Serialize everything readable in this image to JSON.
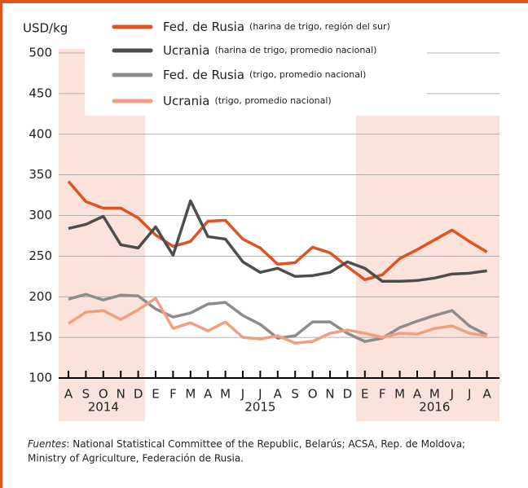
{
  "chart_data": {
    "type": "line",
    "y_label": "USD/kg",
    "categories": [
      "A",
      "S",
      "O",
      "N",
      "D",
      "E",
      "F",
      "M",
      "A",
      "M",
      "J",
      "J",
      "A",
      "S",
      "O",
      "N",
      "D",
      "E",
      "F",
      "M",
      "A",
      "M",
      "J",
      "J",
      "A"
    ],
    "year_labels": [
      "2014",
      "2015",
      "2016"
    ],
    "ylim": [
      100,
      500
    ],
    "yticks": [
      100,
      150,
      200,
      250,
      300,
      350,
      400,
      450,
      500
    ],
    "grid": true,
    "series": [
      {
        "name": "Fed. de Rusia",
        "detail": "(harina de trigo, región del sur)",
        "color": "#e0521f",
        "values": [
          342,
          317,
          309,
          309,
          297,
          276,
          262,
          268,
          293,
          294,
          271,
          260,
          240,
          242,
          261,
          254,
          237,
          221,
          227,
          247,
          258,
          270,
          282,
          268,
          255
        ]
      },
      {
        "name": "Ucrania",
        "detail": "(harina de trigo, promedio nacional)",
        "color": "#4d4d4d",
        "values": [
          284,
          289,
          299,
          264,
          260,
          286,
          251,
          318,
          274,
          271,
          243,
          230,
          235,
          225,
          226,
          230,
          243,
          235,
          219,
          219,
          220,
          223,
          228,
          229,
          232
        ]
      },
      {
        "name": "Fed. de Rusia",
        "detail": "(trigo, promedio nacional)",
        "color": "#8c8c8c",
        "values": [
          197,
          203,
          196,
          202,
          201,
          185,
          175,
          180,
          191,
          193,
          177,
          166,
          149,
          152,
          169,
          169,
          155,
          145,
          149,
          162,
          170,
          177,
          183,
          164,
          153
        ]
      },
      {
        "name": "Ucrania",
        "detail": "(trigo, promedio nacional)",
        "color": "#f0a07f",
        "values": [
          167,
          181,
          183,
          172,
          184,
          198,
          161,
          168,
          158,
          169,
          150,
          148,
          152,
          143,
          145,
          155,
          159,
          155,
          150,
          155,
          154,
          161,
          164,
          155,
          152
        ]
      }
    ],
    "source_label": "Fuentes",
    "source_text": ": National Statistical Committee of the Republic, Belarús; ACSA, Rep. de Moldova;",
    "source_text2": "Ministry of Agriculture, Federación de Rusia."
  }
}
